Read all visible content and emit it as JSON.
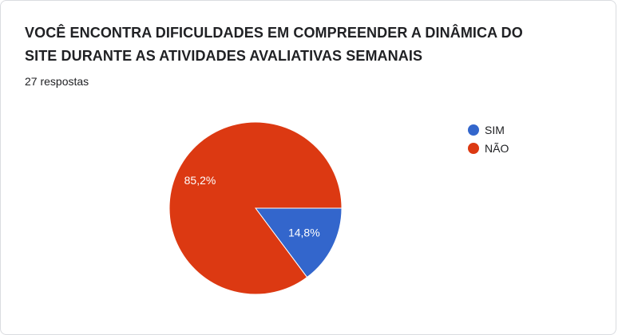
{
  "form_card": {
    "title": "VOCÊ ENCONTRA DIFICULDADES EM COMPREENDER A DINÂMICA DO SITE DURANTE AS ATIVIDADES AVALIATIVAS SEMANAIS",
    "responses_label": "27 respostas"
  },
  "chart_data": {
    "type": "pie",
    "slices": [
      {
        "label": "SIM",
        "value": 14.8,
        "display": "14,8%",
        "color": "#3366cc"
      },
      {
        "label": "NÃO",
        "value": 85.2,
        "display": "85,2%",
        "color": "#dc3912"
      }
    ],
    "legend_position": "right"
  }
}
